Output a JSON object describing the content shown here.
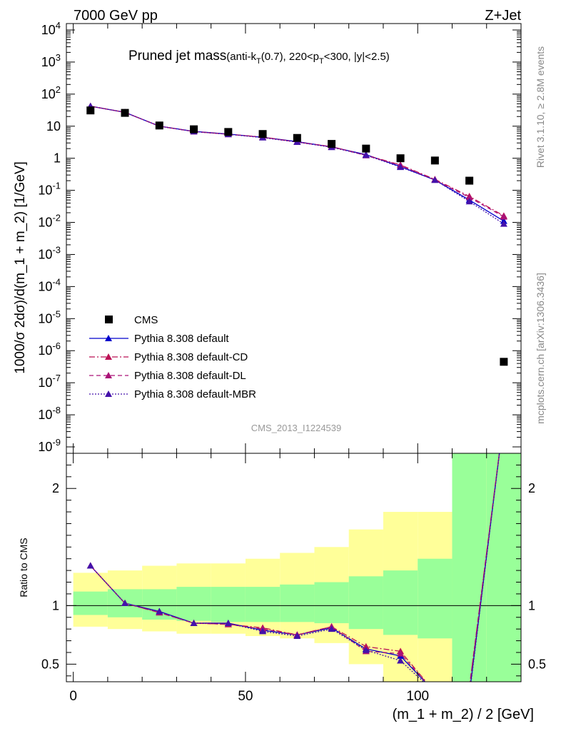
{
  "chart_data": {
    "type": "line",
    "header_left": "7000 GeV pp",
    "header_right": "Z+Jet",
    "title_main": "Pruned jet mass",
    "title_sub": "(anti-k",
    "title_sub_T": "T",
    "title_sub_rest": "(0.7), 220<p",
    "title_sub_T2": "T",
    "title_sub_end": "<300, |y|<2.5)",
    "ylabel": "1000/σ 2dσ)/d(m_1 + m_2) [1/GeV]",
    "ratio_ylabel": "Ratio to CMS",
    "xlabel": "(m_1 + m_2) / 2 [GeV]",
    "analysis_id": "CMS_2013_I1224539",
    "side_label_top": "Rivet 3.1.10, ≥ 2.8M events",
    "side_label_bottom": "mcplots.cern.ch [arXiv:1306.3436]",
    "x_ticks": [
      0,
      50,
      100
    ],
    "xlim": [
      -2,
      130
    ],
    "ylim_log": [
      -9.2,
      4.2
    ],
    "ratio_ylim": [
      0.35,
      2.3
    ],
    "ratio_ticks": [
      0.5,
      1,
      2
    ],
    "x": [
      5,
      15,
      25,
      35,
      45,
      55,
      65,
      75,
      85,
      95,
      105,
      115,
      125
    ],
    "bin_edges": [
      0,
      10,
      20,
      30,
      40,
      50,
      60,
      70,
      80,
      90,
      100,
      110,
      120,
      130
    ],
    "colors": {
      "data": "#000000",
      "default": "#0000cc",
      "cd": "#bb1155",
      "dl": "#aa1177",
      "mbr": "#4411aa",
      "band_inner": "#99ff99",
      "band_outer": "#ffff99"
    },
    "data": {
      "name": "CMS",
      "values": [
        31,
        26,
        10.5,
        8,
        6.6,
        5.7,
        4.3,
        2.8,
        2.0,
        1.0,
        0.85,
        0.2,
        4.5e-07
      ]
    },
    "series": [
      {
        "name": "Pythia 8.308 default",
        "style": "solid",
        "values": [
          42,
          27,
          10,
          6.9,
          5.7,
          4.5,
          3.3,
          2.25,
          1.3,
          0.55,
          0.21,
          0.05,
          0.011
        ],
        "ratio": [
          1.34,
          1.02,
          0.95,
          0.85,
          0.85,
          0.79,
          0.75,
          0.81,
          0.63,
          0.57,
          0.26,
          0.25,
          2.6
        ]
      },
      {
        "name": "Pythia 8.308 default-CD",
        "style": "dashdot",
        "values": [
          42,
          27,
          10,
          6.8,
          5.6,
          4.6,
          3.2,
          2.3,
          1.25,
          0.62,
          0.22,
          0.065,
          0.016
        ],
        "ratio": [
          1.34,
          1.02,
          0.94,
          0.85,
          0.84,
          0.81,
          0.75,
          0.82,
          0.65,
          0.61,
          0.26,
          0.3,
          2.6
        ]
      },
      {
        "name": "Pythia 8.308 default-DL",
        "style": "dashed",
        "values": [
          42,
          27,
          10,
          6.8,
          5.6,
          4.5,
          3.2,
          2.3,
          1.22,
          0.6,
          0.21,
          0.06,
          0.015
        ],
        "ratio": [
          1.34,
          1.02,
          0.94,
          0.85,
          0.84,
          0.8,
          0.75,
          0.82,
          0.61,
          0.59,
          0.26,
          0.3,
          2.6
        ]
      },
      {
        "name": "Pythia 8.308 default-MBR",
        "style": "dotted",
        "values": [
          42,
          27,
          10,
          6.8,
          5.6,
          4.4,
          3.2,
          2.2,
          1.25,
          0.53,
          0.21,
          0.045,
          0.009
        ],
        "ratio": [
          1.34,
          1.02,
          0.95,
          0.85,
          0.85,
          0.78,
          0.74,
          0.8,
          0.62,
          0.53,
          0.26,
          0.23,
          2.6
        ]
      }
    ],
    "band_inner": [
      [
        0.92,
        1.12
      ],
      [
        0.9,
        1.14
      ],
      [
        0.88,
        1.14
      ],
      [
        0.87,
        1.16
      ],
      [
        0.86,
        1.16
      ],
      [
        0.86,
        1.16
      ],
      [
        0.86,
        1.18
      ],
      [
        0.85,
        1.2
      ],
      [
        0.8,
        1.25
      ],
      [
        0.75,
        1.3
      ],
      [
        0.72,
        1.4
      ],
      [
        0.3,
        2.3
      ],
      [
        0.3,
        2.3
      ]
    ],
    "band_outer": [
      [
        0.82,
        1.28
      ],
      [
        0.8,
        1.3
      ],
      [
        0.78,
        1.34
      ],
      [
        0.76,
        1.36
      ],
      [
        0.76,
        1.36
      ],
      [
        0.74,
        1.4
      ],
      [
        0.72,
        1.45
      ],
      [
        0.68,
        1.5
      ],
      [
        0.5,
        1.65
      ],
      [
        0.3,
        1.8
      ],
      [
        0.3,
        1.8
      ],
      [
        0.3,
        2.3
      ],
      [
        0.3,
        2.3
      ]
    ]
  }
}
